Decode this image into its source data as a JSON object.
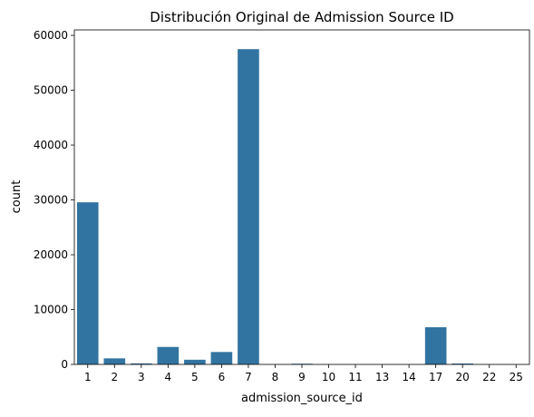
{
  "chart_data": {
    "type": "bar",
    "title": "Distribución Original de Admission Source ID",
    "xlabel": "admission_source_id",
    "ylabel": "count",
    "categories": [
      "1",
      "2",
      "3",
      "4",
      "5",
      "6",
      "7",
      "8",
      "9",
      "10",
      "11",
      "13",
      "14",
      "17",
      "20",
      "22",
      "25"
    ],
    "values": [
      29565,
      1104,
      187,
      3187,
      855,
      2264,
      57494,
      16,
      125,
      8,
      2,
      1,
      2,
      6781,
      161,
      12,
      2
    ],
    "ylim": [
      0,
      61000
    ],
    "yticks": [
      0,
      10000,
      20000,
      30000,
      40000,
      50000,
      60000
    ],
    "bar_color": "#3274a1",
    "grid": false,
    "legend": "none"
  }
}
